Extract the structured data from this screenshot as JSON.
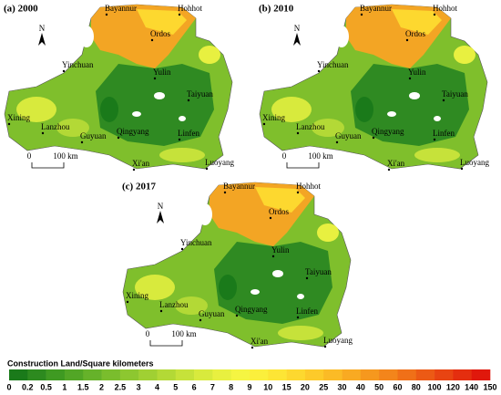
{
  "panels": [
    {
      "title": "(a) 2000",
      "north": "N",
      "scale": {
        "start": "0",
        "end": "100 km"
      },
      "cities": [
        "Bayannur",
        "Hohhot",
        "Ordos",
        "Yinchuan",
        "Yulin",
        "Taiyuan",
        "Xining",
        "Lanzhou",
        "Guyuan",
        "Qingyang",
        "Linfen",
        "Xi'an",
        "Luoyang"
      ]
    },
    {
      "title": "(b) 2010",
      "north": "N",
      "scale": {
        "start": "0",
        "end": "100 km"
      },
      "cities": [
        "Bayannur",
        "Hohhot",
        "Ordos",
        "Yinchuan",
        "Yulin",
        "Taiyuan",
        "Xining",
        "Lanzhou",
        "Guyuan",
        "Qingyang",
        "Linfen",
        "Xi'an",
        "Luoyang"
      ]
    },
    {
      "title": "(c) 2017",
      "north": "N",
      "scale": {
        "start": "0",
        "end": "100 km"
      },
      "cities": [
        "Bayannur",
        "Hohhot",
        "Ordos",
        "Yinchuan",
        "Yulin",
        "Taiyuan",
        "Xining",
        "Lanzhou",
        "Guyuan",
        "Qingyang",
        "Linfen",
        "Xi'an",
        "Luoyang"
      ]
    }
  ],
  "legend": {
    "title": "Construction Land/Square kilometers",
    "labels": [
      "0",
      "0.2",
      "0.5",
      "1",
      "1.5",
      "2",
      "2.5",
      "3",
      "4",
      "5",
      "6",
      "7",
      "8",
      "9",
      "10",
      "15",
      "20",
      "25",
      "30",
      "40",
      "50",
      "60",
      "80",
      "100",
      "120",
      "140",
      "150"
    ],
    "colors": [
      "#1a7a1a",
      "#2d8a1f",
      "#3f9a22",
      "#52a626",
      "#66b22a",
      "#7abd2d",
      "#8dc730",
      "#a0d033",
      "#b3d936",
      "#c6e23a",
      "#d8ea3d",
      "#e8f040",
      "#f5f542",
      "#fbef3c",
      "#fde535",
      "#fdd82f",
      "#fdca2a",
      "#fbbb26",
      "#f9aa22",
      "#f6981e",
      "#f3851b",
      "#f07018",
      "#ec5a15",
      "#e84412",
      "#e42e0f",
      "#e0180c"
    ]
  }
}
